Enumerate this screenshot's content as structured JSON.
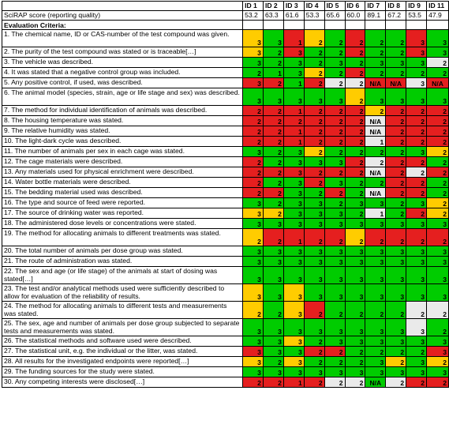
{
  "header": {
    "ids": [
      "ID 1",
      "ID 2",
      "ID 3",
      "ID 4",
      "ID 5",
      "ID 6",
      "ID 7",
      "ID 8",
      "ID 9",
      "ID 11"
    ],
    "score_label": "SciRAP score (reporting quality)",
    "scores": [
      "53.2",
      "63.3",
      "61.6",
      "53.3",
      "65.6",
      "60.0",
      "89.1",
      "67.2",
      "53.5",
      "47.9"
    ],
    "criteria_heading": "Evaluation Criteria:"
  },
  "colors": {
    "G": "#00cc00",
    "Y": "#ffcc00",
    "R": "#e51f1f",
    "W": "#eaeaea"
  },
  "legend": {
    "3": "green",
    "2": "yellow/red",
    "1": "red",
    "N/A": "not applicable",
    "blank": "empty grey"
  },
  "rows": [
    {
      "text": "1. The chemical name, ID or CAS-number of the test compound was given.",
      "h": 2,
      "cells": [
        [
          "3",
          "Y"
        ],
        [
          "3",
          "G"
        ],
        [
          "1",
          "R"
        ],
        [
          "2",
          "Y"
        ],
        [
          "2",
          "G"
        ],
        [
          "2",
          "R"
        ],
        [
          "2",
          "G"
        ],
        [
          "2",
          "G"
        ],
        [
          "3",
          "R"
        ],
        [
          "3",
          "G"
        ]
      ]
    },
    {
      "text": "2. The purity of the test compound was stated or is traceable[…]",
      "h": 1,
      "cells": [
        [
          "3",
          "Y"
        ],
        [
          "2",
          "G"
        ],
        [
          "3",
          "R"
        ],
        [
          "2",
          "G"
        ],
        [
          "2",
          "G"
        ],
        [
          "2",
          "R"
        ],
        [
          "2",
          "G"
        ],
        [
          "2",
          "G"
        ],
        [
          "3",
          "R"
        ],
        [
          "3",
          "G"
        ]
      ]
    },
    {
      "text": "3. The vehicle was described.",
      "h": 1,
      "cells": [
        [
          "3",
          "G"
        ],
        [
          "2",
          "G"
        ],
        [
          "3",
          "G"
        ],
        [
          "2",
          "G"
        ],
        [
          "3",
          "G"
        ],
        [
          "2",
          "G"
        ],
        [
          "3",
          "G"
        ],
        [
          "3",
          "G"
        ],
        [
          "3",
          "G"
        ],
        [
          "2",
          "W"
        ]
      ]
    },
    {
      "text": "4. It was stated that a negative control group was included.",
      "h": 1,
      "cells": [
        [
          "2",
          "G"
        ],
        [
          "1",
          "G"
        ],
        [
          "3",
          "G"
        ],
        [
          "2",
          "Y"
        ],
        [
          "2",
          "G"
        ],
        [
          "2",
          "R"
        ],
        [
          "2",
          "G"
        ],
        [
          "2",
          "G"
        ],
        [
          "2",
          "G"
        ],
        [
          "2",
          "G"
        ]
      ]
    },
    {
      "text": "5. Any positive control, if used, was described.",
      "h": 1,
      "cells": [
        [
          "3",
          "R"
        ],
        [
          "2",
          "R"
        ],
        [
          "1",
          "G"
        ],
        [
          "2",
          "R"
        ],
        [
          "2",
          "W"
        ],
        [
          "2",
          "W"
        ],
        [
          "N/A",
          "R"
        ],
        [
          "N/A",
          "R"
        ],
        [
          "3",
          "W"
        ],
        [
          "N/A",
          "R"
        ]
      ]
    },
    {
      "text": "6. The animal model (species, strain, age or life stage and sex) was described.",
      "h": 2,
      "cells": [
        [
          "3",
          "G"
        ],
        [
          "3",
          "G"
        ],
        [
          "3",
          "G"
        ],
        [
          "3",
          "G"
        ],
        [
          "3",
          "G"
        ],
        [
          "2",
          "Y"
        ],
        [
          "3",
          "G"
        ],
        [
          "3",
          "G"
        ],
        [
          "3",
          "G"
        ],
        [
          "3",
          "G"
        ]
      ]
    },
    {
      "text": "7. The method for individual identification of animals was described.",
      "h": 1,
      "cells": [
        [
          "2",
          "R"
        ],
        [
          "2",
          "R"
        ],
        [
          "1",
          "R"
        ],
        [
          "2",
          "R"
        ],
        [
          "2",
          "R"
        ],
        [
          "2",
          "R"
        ],
        [
          "2",
          "Y"
        ],
        [
          "2",
          "R"
        ],
        [
          "2",
          "R"
        ],
        [
          "2",
          "R"
        ]
      ]
    },
    {
      "text": "8. The housing temperature was stated.",
      "h": 1,
      "cells": [
        [
          "2",
          "R"
        ],
        [
          "2",
          "R"
        ],
        [
          "2",
          "R"
        ],
        [
          "2",
          "R"
        ],
        [
          "2",
          "R"
        ],
        [
          "2",
          "R"
        ],
        [
          "N/A",
          "W"
        ],
        [
          "2",
          "R"
        ],
        [
          "2",
          "R"
        ],
        [
          "2",
          "R"
        ]
      ]
    },
    {
      "text": "9. The relative humidity was stated.",
      "h": 1,
      "cells": [
        [
          "2",
          "R"
        ],
        [
          "2",
          "R"
        ],
        [
          "1",
          "R"
        ],
        [
          "2",
          "R"
        ],
        [
          "2",
          "R"
        ],
        [
          "2",
          "R"
        ],
        [
          "N/A",
          "W"
        ],
        [
          "2",
          "R"
        ],
        [
          "2",
          "R"
        ],
        [
          "2",
          "R"
        ]
      ]
    },
    {
      "text": "10. The light-dark cycle was described.",
      "h": 1,
      "cells": [
        [
          "2",
          "R"
        ],
        [
          "2",
          "R"
        ],
        [
          "1",
          "R"
        ],
        [
          "2",
          "R"
        ],
        [
          "2",
          "R"
        ],
        [
          "2",
          "R"
        ],
        [
          "1",
          "W"
        ],
        [
          "2",
          "R"
        ],
        [
          "2",
          "R"
        ],
        [
          "2",
          "R"
        ]
      ]
    },
    {
      "text": "11. The number of animals per sex in each cage was stated.",
      "h": 1,
      "cells": [
        [
          "3",
          "G"
        ],
        [
          "2",
          "G"
        ],
        [
          "3",
          "G"
        ],
        [
          "2",
          "Y"
        ],
        [
          "2",
          "G"
        ],
        [
          "2",
          "G"
        ],
        [
          "2",
          "G"
        ],
        [
          "2",
          "G"
        ],
        [
          "3",
          "G"
        ],
        [
          "2",
          "Y"
        ]
      ]
    },
    {
      "text": "12. The cage materials were described.",
      "h": 1,
      "cells": [
        [
          "2",
          "R"
        ],
        [
          "2",
          "G"
        ],
        [
          "3",
          "G"
        ],
        [
          "3",
          "G"
        ],
        [
          "3",
          "G"
        ],
        [
          "2",
          "R"
        ],
        [
          "2",
          "W"
        ],
        [
          "2",
          "R"
        ],
        [
          "2",
          "R"
        ],
        [
          "2",
          "G"
        ]
      ]
    },
    {
      "text": "13. Any materials used for physical enrichment were described.",
      "h": 1,
      "cells": [
        [
          "2",
          "R"
        ],
        [
          "2",
          "R"
        ],
        [
          "3",
          "R"
        ],
        [
          "2",
          "R"
        ],
        [
          "2",
          "R"
        ],
        [
          "2",
          "R"
        ],
        [
          "N/A",
          "W"
        ],
        [
          "2",
          "R"
        ],
        [
          "2",
          "W"
        ],
        [
          "2",
          "R"
        ]
      ]
    },
    {
      "text": "14. Water bottle materials were described.",
      "h": 1,
      "cells": [
        [
          "2",
          "R"
        ],
        [
          "2",
          "G"
        ],
        [
          "3",
          "G"
        ],
        [
          "2",
          "R"
        ],
        [
          "3",
          "G"
        ],
        [
          "2",
          "G"
        ],
        [
          "2",
          "G"
        ],
        [
          "2",
          "R"
        ],
        [
          "2",
          "R"
        ],
        [
          "2",
          "G"
        ]
      ]
    },
    {
      "text": "15. The bedding material used was described.",
      "h": 1,
      "cells": [
        [
          "2",
          "R"
        ],
        [
          "2",
          "R"
        ],
        [
          "3",
          "G"
        ],
        [
          "2",
          "G"
        ],
        [
          "2",
          "R"
        ],
        [
          "2",
          "G"
        ],
        [
          "N/A",
          "W"
        ],
        [
          "2",
          "R"
        ],
        [
          "2",
          "R"
        ],
        [
          "2",
          "G"
        ]
      ]
    },
    {
      "text": "16. The type and source of feed were reported.",
      "h": 1,
      "cells": [
        [
          "3",
          "G"
        ],
        [
          "2",
          "G"
        ],
        [
          "3",
          "G"
        ],
        [
          "3",
          "G"
        ],
        [
          "2",
          "G"
        ],
        [
          "3",
          "G"
        ],
        [
          "3",
          "G"
        ],
        [
          "2",
          "G"
        ],
        [
          "3",
          "G"
        ],
        [
          "2",
          "Y"
        ]
      ]
    },
    {
      "text": "17. The source of drinking water was reported.",
      "h": 1,
      "cells": [
        [
          "3",
          "Y"
        ],
        [
          "2",
          "Y"
        ],
        [
          "3",
          "G"
        ],
        [
          "3",
          "G"
        ],
        [
          "3",
          "G"
        ],
        [
          "2",
          "G"
        ],
        [
          "1",
          "W"
        ],
        [
          "2",
          "G"
        ],
        [
          "2",
          "R"
        ],
        [
          "2",
          "Y"
        ]
      ]
    },
    {
      "text": "18. The administered dose levels or concentrations were stated.",
      "h": 1,
      "cells": [
        [
          "3",
          "G"
        ],
        [
          "3",
          "G"
        ],
        [
          "3",
          "G"
        ],
        [
          "3",
          "G"
        ],
        [
          "3",
          "G"
        ],
        [
          "3",
          "G"
        ],
        [
          "3",
          "G"
        ],
        [
          "3",
          "G"
        ],
        [
          "3",
          "G"
        ],
        [
          "3",
          "G"
        ]
      ]
    },
    {
      "text": "19. The method for allocating animals to different treatments was stated.",
      "h": 2,
      "cells": [
        [
          "2",
          "Y"
        ],
        [
          "2",
          "R"
        ],
        [
          "1",
          "R"
        ],
        [
          "2",
          "R"
        ],
        [
          "2",
          "R"
        ],
        [
          "2",
          "Y"
        ],
        [
          "2",
          "R"
        ],
        [
          "2",
          "R"
        ],
        [
          "2",
          "R"
        ],
        [
          "2",
          "R"
        ]
      ]
    },
    {
      "text": "20. The total number of animals per dose group was stated.",
      "h": 1,
      "cells": [
        [
          "3",
          "G"
        ],
        [
          "3",
          "G"
        ],
        [
          "3",
          "G"
        ],
        [
          "3",
          "G"
        ],
        [
          "3",
          "G"
        ],
        [
          "3",
          "G"
        ],
        [
          "3",
          "G"
        ],
        [
          "3",
          "G"
        ],
        [
          "3",
          "G"
        ],
        [
          "3",
          "G"
        ]
      ]
    },
    {
      "text": "21. The route of administration was stated.",
      "h": 1,
      "cells": [
        [
          "3",
          "G"
        ],
        [
          "3",
          "G"
        ],
        [
          "3",
          "G"
        ],
        [
          "3",
          "G"
        ],
        [
          "3",
          "G"
        ],
        [
          "3",
          "G"
        ],
        [
          "3",
          "G"
        ],
        [
          "3",
          "G"
        ],
        [
          "3",
          "G"
        ],
        [
          "3",
          "G"
        ]
      ]
    },
    {
      "text": "22. The sex and age (or life stage) of the animals at start of dosing was stated[…]",
      "h": 2,
      "cells": [
        [
          "3",
          "G"
        ],
        [
          "3",
          "G"
        ],
        [
          "3",
          "G"
        ],
        [
          "3",
          "G"
        ],
        [
          "3",
          "G"
        ],
        [
          "3",
          "G"
        ],
        [
          "3",
          "G"
        ],
        [
          "3",
          "G"
        ],
        [
          "3",
          "G"
        ],
        [
          "3",
          "G"
        ]
      ]
    },
    {
      "text": "23. The test and/or analytical methods used were sufficiently described to allow for evaluation of the reliability of results.",
      "h": 2,
      "cells": [
        [
          "3",
          "Y"
        ],
        [
          "3",
          "G"
        ],
        [
          "3",
          "Y"
        ],
        [
          "3",
          "G"
        ],
        [
          "3",
          "G"
        ],
        [
          "3",
          "G"
        ],
        [
          "3",
          "G"
        ],
        [
          "3",
          "G"
        ],
        [
          "3",
          "G"
        ],
        [
          "3",
          "G"
        ]
      ]
    },
    {
      "text": "24. The method for allocating animals to different tests and measurements was stated.",
      "h": 2,
      "cells": [
        [
          "2",
          "Y"
        ],
        [
          "2",
          "G"
        ],
        [
          "3",
          "Y"
        ],
        [
          "2",
          "R"
        ],
        [
          "2",
          "G"
        ],
        [
          "2",
          "G"
        ],
        [
          "2",
          "G"
        ],
        [
          "2",
          "G"
        ],
        [
          "2",
          "W"
        ],
        [
          "2",
          "W"
        ]
      ]
    },
    {
      "text": "25. The sex, age and number of animals per dose group subjected to separate tests and measurements was stated.",
      "h": 2,
      "cells": [
        [
          "3",
          "G"
        ],
        [
          "3",
          "G"
        ],
        [
          "3",
          "G"
        ],
        [
          "3",
          "G"
        ],
        [
          "3",
          "G"
        ],
        [
          "3",
          "G"
        ],
        [
          "3",
          "G"
        ],
        [
          "3",
          "G"
        ],
        [
          "3",
          "W"
        ],
        [
          "2",
          "G"
        ]
      ]
    },
    {
      "text": "26. The statistical methods and software used were described.",
      "h": 1,
      "cells": [
        [
          "3",
          "G"
        ],
        [
          "3",
          "G"
        ],
        [
          "3",
          "Y"
        ],
        [
          "2",
          "G"
        ],
        [
          "3",
          "G"
        ],
        [
          "3",
          "G"
        ],
        [
          "3",
          "G"
        ],
        [
          "3",
          "G"
        ],
        [
          "3",
          "G"
        ],
        [
          "3",
          "G"
        ]
      ]
    },
    {
      "text": "27. The statistical unit, e.g. the individual or the litter, was stated.",
      "h": 1,
      "cells": [
        [
          "3",
          "R"
        ],
        [
          "3",
          "G"
        ],
        [
          "3",
          "G"
        ],
        [
          "2",
          "R"
        ],
        [
          "2",
          "R"
        ],
        [
          "2",
          "G"
        ],
        [
          "2",
          "G"
        ],
        [
          "2",
          "G"
        ],
        [
          "2",
          "G"
        ],
        [
          "3",
          "R"
        ]
      ]
    },
    {
      "text": "28. All results for the investigated endpoints were reported[…]",
      "h": 1,
      "cells": [
        [
          "3",
          "Y"
        ],
        [
          "2",
          "G"
        ],
        [
          "3",
          "Y"
        ],
        [
          "2",
          "G"
        ],
        [
          "2",
          "G"
        ],
        [
          "2",
          "G"
        ],
        [
          "3",
          "G"
        ],
        [
          "2",
          "Y"
        ],
        [
          "3",
          "G"
        ],
        [
          "2",
          "Y"
        ]
      ]
    },
    {
      "text": "29. The funding sources for the study were stated.",
      "h": 1,
      "cells": [
        [
          "3",
          "G"
        ],
        [
          "3",
          "G"
        ],
        [
          "3",
          "G"
        ],
        [
          "3",
          "G"
        ],
        [
          "3",
          "G"
        ],
        [
          "3",
          "G"
        ],
        [
          "3",
          "G"
        ],
        [
          "3",
          "G"
        ],
        [
          "3",
          "G"
        ],
        [
          "3",
          "G"
        ]
      ]
    },
    {
      "text": "30. Any competing interests were disclosed[…]",
      "h": 1,
      "cells": [
        [
          "2",
          "R"
        ],
        [
          "2",
          "R"
        ],
        [
          "1",
          "R"
        ],
        [
          "2",
          "R"
        ],
        [
          "2",
          "W"
        ],
        [
          "2",
          "W"
        ],
        [
          "N/A",
          "G"
        ],
        [
          "2",
          "W"
        ],
        [
          "2",
          "R"
        ],
        [
          "2",
          "R"
        ]
      ]
    }
  ]
}
